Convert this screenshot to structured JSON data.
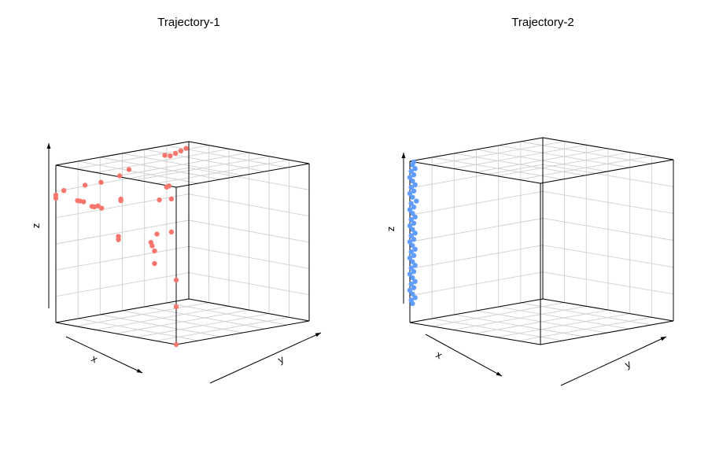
{
  "chart_data": [
    {
      "type": "scatter",
      "projection": "3d",
      "title": "Trajectory-1",
      "xlabel": "x",
      "ylabel": "y",
      "zlabel": "z",
      "grid": true,
      "color": "#f8766d",
      "series": [
        {
          "x": [
            0.02,
            0.06,
            0.1,
            0.14,
            0.18,
            0.45,
            0.52,
            0.66,
            0.78,
            0.94,
            1.0,
            1.0,
            1.0,
            1.0,
            1.0,
            1.0,
            1.0,
            1.0,
            1.0,
            1.0,
            1.0,
            1.0,
            1.0,
            1.0,
            1.0,
            1.0,
            1.0,
            1.0,
            1.0,
            1.0,
            1.0,
            1.0,
            1.0,
            1.0,
            1.0,
            1.0
          ],
          "y": [
            0.0,
            0.0,
            0.0,
            0.0,
            0.0,
            0.0,
            0.0,
            0.0,
            0.0,
            0.0,
            0.0,
            0.0,
            0.18,
            0.2,
            0.23,
            0.3,
            0.32,
            0.35,
            0.38,
            0.52,
            0.52,
            0.54,
            0.54,
            0.79,
            0.8,
            0.82,
            0.82,
            0.84,
            0.86,
            0.92,
            0.96,
            0.94,
            0.96,
            1.0,
            1.0,
            1.0
          ],
          "z": [
            0.96,
            0.95,
            0.94,
            0.93,
            0.94,
            0.89,
            0.86,
            0.84,
            0.84,
            0.83,
            0.81,
            0.79,
            0.8,
            0.8,
            0.8,
            0.78,
            0.78,
            0.79,
            0.78,
            0.6,
            0.62,
            0.85,
            0.86,
            0.62,
            0.6,
            0.57,
            0.49,
            0.68,
            0.9,
            0.99,
            0.92,
            1.0,
            0.71,
            0.41,
            0.24,
            0.0
          ]
        }
      ]
    },
    {
      "type": "scatter",
      "projection": "3d",
      "title": "Trajectory-2",
      "xlabel": "x",
      "ylabel": "y",
      "zlabel": "z",
      "grid": true,
      "color": "#619cff",
      "series": [
        {
          "x": [
            1.0,
            1.0,
            1.0,
            1.0,
            1.0,
            1.0,
            1.0,
            1.0,
            1.0,
            1.0,
            1.0,
            1.0,
            1.0,
            1.0,
            1.0,
            1.0,
            1.0,
            1.0,
            1.0,
            1.0,
            1.0,
            1.0,
            1.0,
            1.0,
            1.0,
            1.0,
            1.0,
            1.0,
            1.0,
            1.0,
            1.0,
            1.0,
            1.0,
            1.0,
            1.0,
            1.0,
            1.0,
            1.0,
            1.0,
            1.0,
            1.0,
            1.0,
            1.0,
            1.0,
            1.0
          ],
          "y": [
            0.03,
            0.02,
            0.04,
            0.01,
            0.03,
            0.0,
            0.02,
            0.04,
            0.01,
            0.03,
            0.0,
            0.02,
            0.05,
            0.01,
            0.03,
            0.0,
            0.02,
            0.04,
            0.01,
            0.03,
            0.0,
            0.02,
            0.04,
            0.01,
            0.03,
            0.0,
            0.02,
            0.04,
            0.01,
            0.03,
            0.0,
            0.02,
            0.04,
            0.01,
            0.03,
            0.0,
            0.02,
            0.04,
            0.01,
            0.03,
            0.0,
            0.02,
            0.04,
            0.01,
            0.02
          ],
          "z": [
            1.0,
            0.98,
            0.96,
            0.94,
            0.92,
            0.9,
            0.88,
            0.86,
            0.84,
            0.82,
            0.8,
            0.78,
            0.76,
            0.74,
            0.72,
            0.7,
            0.68,
            0.66,
            0.64,
            0.62,
            0.6,
            0.58,
            0.56,
            0.54,
            0.52,
            0.5,
            0.48,
            0.46,
            0.44,
            0.42,
            0.4,
            0.38,
            0.36,
            0.34,
            0.32,
            0.3,
            0.28,
            0.26,
            0.24,
            0.22,
            0.2,
            0.18,
            0.16,
            0.14,
            0.12
          ]
        }
      ]
    }
  ]
}
